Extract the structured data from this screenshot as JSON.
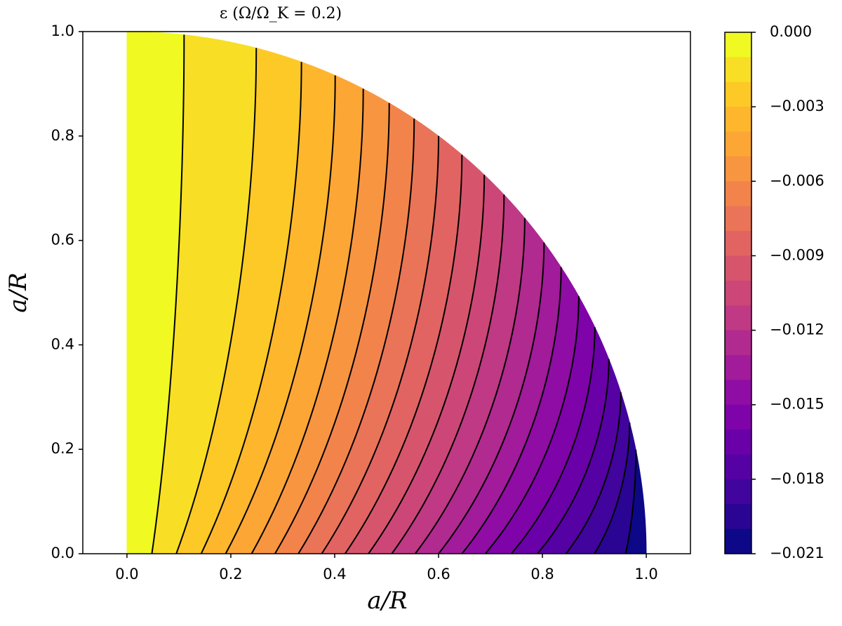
{
  "chart_data": {
    "type": "contourf",
    "title": "ε (Ω/Ω_K = 0.2)",
    "x_label": "a/R",
    "y_label": "a/R",
    "xlim": [
      -0.085,
      1.085
    ],
    "ylim": [
      0,
      1
    ],
    "xticks": [
      {
        "value": 0,
        "label": "0.0"
      },
      {
        "value": 0.2,
        "label": "0.2"
      },
      {
        "value": 0.4,
        "label": "0.4"
      },
      {
        "value": 0.6,
        "label": "0.6"
      },
      {
        "value": 0.8,
        "label": "0.8"
      },
      {
        "value": 1,
        "label": "1.0"
      }
    ],
    "yticks": [
      {
        "value": 0,
        "label": "0.0"
      },
      {
        "value": 0.2,
        "label": "0.2"
      },
      {
        "value": 0.4,
        "label": "0.4"
      },
      {
        "value": 0.6,
        "label": "0.6"
      },
      {
        "value": 0.8,
        "label": "0.8"
      },
      {
        "value": 1,
        "label": "1.0"
      }
    ],
    "clim": [
      -0.021,
      0
    ],
    "cticks": [
      {
        "value": 0,
        "label": "0.000"
      },
      {
        "value": -0.003,
        "label": "−0.003"
      },
      {
        "value": -0.006,
        "label": "−0.006"
      },
      {
        "value": -0.009,
        "label": "−0.009"
      },
      {
        "value": -0.012,
        "label": "−0.012"
      },
      {
        "value": -0.015,
        "label": "−0.015"
      },
      {
        "value": -0.018,
        "label": "−0.018"
      },
      {
        "value": -0.021,
        "label": "−0.021"
      }
    ],
    "contours": [
      {
        "level": -0.001,
        "x_bottom": 0.048,
        "x_top": 0.11
      },
      {
        "level": -0.002,
        "x_bottom": 0.095,
        "x_top": 0.249
      },
      {
        "level": -0.003,
        "x_bottom": 0.143,
        "x_top": 0.336
      },
      {
        "level": -0.004,
        "x_bottom": 0.19,
        "x_top": 0.401
      },
      {
        "level": -0.005,
        "x_bottom": 0.24,
        "x_top": 0.455
      },
      {
        "level": -0.006,
        "x_bottom": 0.285,
        "x_top": 0.505
      },
      {
        "level": -0.007,
        "x_bottom": 0.33,
        "x_top": 0.553
      },
      {
        "level": -0.008,
        "x_bottom": 0.375,
        "x_top": 0.6
      },
      {
        "level": -0.009,
        "x_bottom": 0.42,
        "x_top": 0.645
      },
      {
        "level": -0.01,
        "x_bottom": 0.465,
        "x_top": 0.688
      },
      {
        "level": -0.011,
        "x_bottom": 0.51,
        "x_top": 0.726
      },
      {
        "level": -0.012,
        "x_bottom": 0.555,
        "x_top": 0.766
      },
      {
        "level": -0.013,
        "x_bottom": 0.6,
        "x_top": 0.803
      },
      {
        "level": -0.014,
        "x_bottom": 0.645,
        "x_top": 0.836
      },
      {
        "level": -0.015,
        "x_bottom": 0.69,
        "x_top": 0.87
      },
      {
        "level": -0.016,
        "x_bottom": 0.74,
        "x_top": 0.901
      },
      {
        "level": -0.017,
        "x_bottom": 0.79,
        "x_top": 0.928
      },
      {
        "level": -0.018,
        "x_bottom": 0.845,
        "x_top": 0.951
      },
      {
        "level": -0.019,
        "x_bottom": 0.9,
        "x_top": 0.968
      },
      {
        "level": -0.02,
        "x_bottom": 0.96,
        "x_top": 0.98
      }
    ],
    "colors": [
      "#f0f921",
      "#f8df25",
      "#fdc926",
      "#feb72d",
      "#fca636",
      "#f89540",
      "#f2844b",
      "#ea7457",
      "#e16462",
      "#d6556d",
      "#cc4778",
      "#bf3984",
      "#b12a90",
      "#a11b9b",
      "#8f0da4",
      "#7e03a8",
      "#6a00a8",
      "#5601a4",
      "#41049d",
      "#2a0593",
      "#0d0887"
    ],
    "contour_color": "#000000"
  }
}
